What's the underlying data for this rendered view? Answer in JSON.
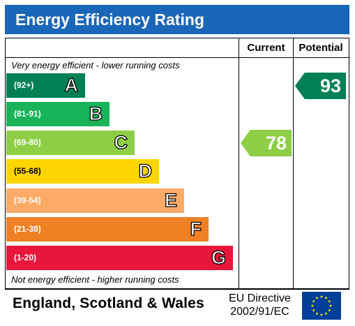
{
  "title": "Energy Efficiency Rating",
  "columns": {
    "current": "Current",
    "potential": "Potential"
  },
  "notes": {
    "top": "Very energy efficient - lower running costs",
    "bottom": "Not energy efficient - higher running costs"
  },
  "bands": [
    {
      "range": "(92+)",
      "letter": "A",
      "color": "#008054"
    },
    {
      "range": "(81-91)",
      "letter": "B",
      "color": "#19b459"
    },
    {
      "range": "(69-80)",
      "letter": "C",
      "color": "#8dce46"
    },
    {
      "range": "(55-68)",
      "letter": "D",
      "color": "#ffd500"
    },
    {
      "range": "(39-54)",
      "letter": "E",
      "color": "#fcaa65"
    },
    {
      "range": "(21-38)",
      "letter": "F",
      "color": "#ef8023"
    },
    {
      "range": "(1-20)",
      "letter": "G",
      "color": "#e9153b"
    }
  ],
  "ratings": {
    "current": {
      "value": "78",
      "band": "C",
      "color": "#8dce46"
    },
    "potential": {
      "value": "93",
      "band": "A",
      "color": "#008054"
    }
  },
  "footer": {
    "region": "England, Scotland & Wales",
    "directive_line1": "EU Directive",
    "directive_line2": "2002/91/EC"
  }
}
